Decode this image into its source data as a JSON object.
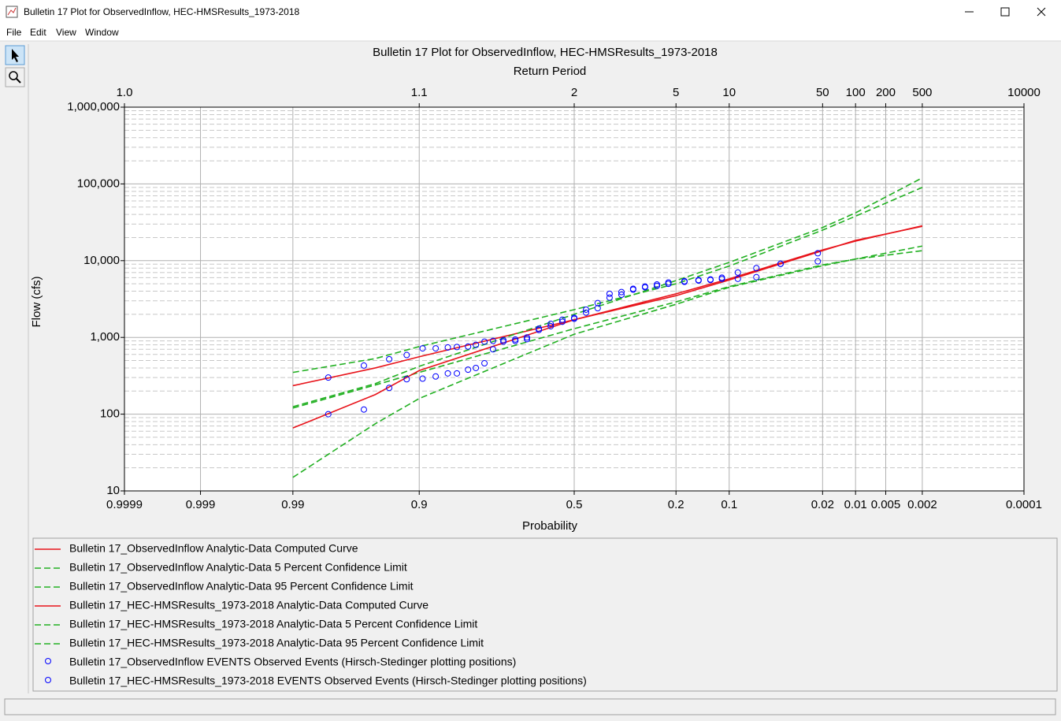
{
  "window": {
    "title": "Bulletin 17 Plot for ObservedInflow, HEC-HMSResults_1973-2018",
    "menu": [
      "File",
      "Edit",
      "View",
      "Window"
    ]
  },
  "chart_data": {
    "type": "line",
    "title": "Bulletin 17 Plot for ObservedInflow, HEC-HMSResults_1973-2018",
    "xlabel": "Probability",
    "x2label": "Return Period",
    "ylabel": "Flow (cfs)",
    "xscale": "normal-probability",
    "yscale": "log",
    "grid": true,
    "xlim": [
      0.9999,
      0.0001
    ],
    "xticks": [
      0.9999,
      0.999,
      0.99,
      0.9,
      0.5,
      0.2,
      0.1,
      0.02,
      0.01,
      0.005,
      0.002,
      0.0001
    ],
    "x2ticks": [
      {
        "value": 1.0001,
        "label": "1.0"
      },
      {
        "value": 1.1111,
        "label": "1.1"
      },
      2,
      5,
      10,
      50,
      100,
      200,
      500,
      10000
    ],
    "ylim": [
      10,
      1000000
    ],
    "yticks": [
      10,
      100,
      {
        "value": 1000,
        "label": "1,000"
      },
      {
        "value": 10000,
        "label": "10,000"
      },
      {
        "value": 100000,
        "label": "100,000"
      },
      {
        "value": 1000000,
        "label": "1,000,000"
      }
    ],
    "series": [
      {
        "name": "Bulletin 17_ObservedInflow Analytic-Data Computed Curve",
        "color": "#e8141b",
        "line_style": "solid",
        "x": [
          0.99,
          0.95,
          0.9,
          0.5,
          0.2,
          0.1,
          0.02,
          0.01,
          0.002
        ],
        "values": [
          235,
          400,
          560,
          1700,
          3500,
          5600,
          13500,
          18400,
          28000
        ]
      },
      {
        "name": "Bulletin 17_ObservedInflow Analytic-Data 5 Percent Confidence Limit",
        "color": "#22b022",
        "line_style": "dashed",
        "x": [
          0.99,
          0.95,
          0.9,
          0.5,
          0.2,
          0.1,
          0.02,
          0.01,
          0.002
        ],
        "values": [
          350,
          530,
          760,
          2300,
          5000,
          8500,
          25000,
          38000,
          90000
        ]
      },
      {
        "name": "Bulletin 17_ObservedInflow Analytic-Data 95 Percent Confidence Limit",
        "color": "#22b022",
        "line_style": "dashed",
        "x": [
          0.99,
          0.95,
          0.9,
          0.5,
          0.2,
          0.1,
          0.02,
          0.01,
          0.002
        ],
        "values": [
          120,
          240,
          350,
          1300,
          2900,
          4600,
          8800,
          10500,
          13500
        ]
      },
      {
        "name": "Bulletin 17_HEC-HMSResults_1973-2018 Analytic-Data Computed Curve",
        "color": "#e8141b",
        "line_style": "solid",
        "x": [
          0.99,
          0.95,
          0.9,
          0.5,
          0.2,
          0.1,
          0.02,
          0.01,
          0.002
        ],
        "values": [
          66,
          180,
          370,
          1700,
          3700,
          5800,
          13800,
          18000,
          28500
        ]
      },
      {
        "name": "Bulletin 17_HEC-HMSResults_1973-2018 Analytic-Data 5 Percent Confidence Limit",
        "color": "#22b022",
        "line_style": "dashed",
        "x": [
          0.99,
          0.95,
          0.9,
          0.5,
          0.2,
          0.1,
          0.02,
          0.01,
          0.002
        ],
        "values": [
          125,
          250,
          420,
          2000,
          5500,
          9500,
          27000,
          42000,
          120000
        ]
      },
      {
        "name": "Bulletin 17_HEC-HMSResults_1973-2018 Analytic-Data 95 Percent Confidence Limit",
        "color": "#22b022",
        "line_style": "dashed",
        "x": [
          0.99,
          0.95,
          0.9,
          0.5,
          0.2,
          0.1,
          0.02,
          0.01,
          0.002
        ],
        "values": [
          15,
          75,
          160,
          1100,
          2700,
          4500,
          8600,
          10500,
          15500
        ]
      },
      {
        "name": "Bulletin 17_ObservedInflow EVENTS Observed Events (Hirsch-Stedinger plotting positions)",
        "color": "#0000ff",
        "line_style": "none",
        "marker": "circle",
        "x": [
          0.979,
          0.959,
          0.937,
          0.917,
          0.895,
          0.874,
          0.852,
          0.834,
          0.81,
          0.792,
          0.771,
          0.749,
          0.721,
          0.687,
          0.652,
          0.615,
          0.577,
          0.539,
          0.5,
          0.461,
          0.423,
          0.385,
          0.348,
          0.313,
          0.279,
          0.247,
          0.218,
          0.181,
          0.152,
          0.13,
          0.111,
          0.088,
          0.066,
          0.044,
          0.022
        ],
        "values": [
          300,
          430,
          520,
          590,
          720,
          720,
          740,
          750,
          760,
          800,
          880,
          900,
          920,
          940,
          1000,
          1300,
          1500,
          1700,
          1800,
          2300,
          2800,
          3700,
          3900,
          4300,
          4600,
          4900,
          5200,
          5400,
          5600,
          5700,
          6000,
          7000,
          8000,
          9100,
          12500
        ]
      },
      {
        "name": "Bulletin 17_HEC-HMSResults_1973-2018 EVENTS Observed Events (Hirsch-Stedinger plotting positions)",
        "color": "#0000ff",
        "line_style": "none",
        "marker": "circle",
        "x": [
          0.979,
          0.959,
          0.937,
          0.917,
          0.895,
          0.874,
          0.852,
          0.834,
          0.81,
          0.792,
          0.771,
          0.749,
          0.721,
          0.687,
          0.652,
          0.615,
          0.577,
          0.539,
          0.5,
          0.461,
          0.423,
          0.385,
          0.348,
          0.313,
          0.279,
          0.247,
          0.218,
          0.181,
          0.152,
          0.13,
          0.111,
          0.088,
          0.066,
          0.044,
          0.022
        ],
        "values": [
          100,
          115,
          220,
          285,
          290,
          310,
          340,
          340,
          380,
          400,
          460,
          700,
          880,
          900,
          950,
          1250,
          1400,
          1600,
          1750,
          2100,
          2400,
          3300,
          3600,
          4200,
          4500,
          4700,
          5000,
          5300,
          5500,
          5600,
          5800,
          5800,
          6100,
          9100,
          9800
        ]
      }
    ]
  }
}
